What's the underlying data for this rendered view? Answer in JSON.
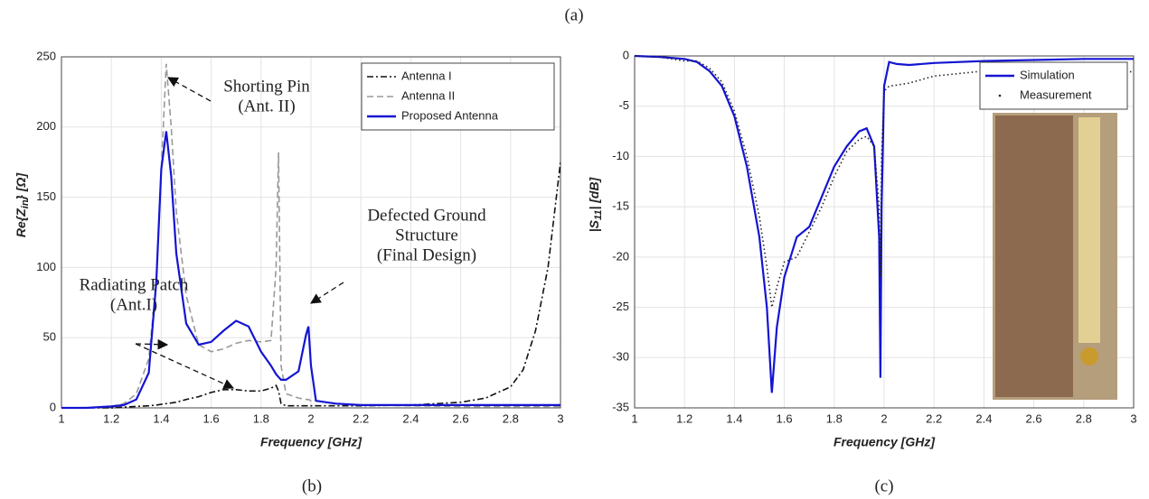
{
  "figure_label": "(a)",
  "chart_data": [
    {
      "type": "line",
      "panel_label": "(b)",
      "xlabel": "Frequency [GHz]",
      "ylabel": {
        "head": "Re{Z",
        "sub": "in",
        "tail": "} [Ω]"
      },
      "xlim": [
        1,
        3
      ],
      "xticks": [
        1,
        1.2,
        1.4,
        1.6,
        1.8,
        2,
        2.2,
        2.4,
        2.6,
        2.8,
        3
      ],
      "ylim": [
        0,
        250
      ],
      "yticks": [
        0,
        50,
        100,
        150,
        200,
        250
      ],
      "grid": true,
      "legend": "upper right",
      "x": [
        1,
        1.1,
        1.2,
        1.25,
        1.3,
        1.35,
        1.38,
        1.4,
        1.42,
        1.44,
        1.46,
        1.5,
        1.55,
        1.6,
        1.65,
        1.7,
        1.75,
        1.8,
        1.84,
        1.86,
        1.87,
        1.88,
        1.9,
        1.95,
        1.98,
        1.99,
        2,
        2.02,
        2.1,
        2.2,
        2.4,
        2.6,
        2.7,
        2.8,
        2.85,
        2.9,
        2.95,
        3
      ],
      "series": [
        {
          "name": "Antenna I",
          "color": "#111111",
          "dash": "dashdot",
          "values": [
            0,
            0,
            0,
            0.5,
            1,
            1.5,
            2,
            2.5,
            3,
            3.5,
            4,
            6,
            8,
            11,
            13,
            13,
            12,
            12,
            14,
            16,
            12,
            3,
            1.5,
            1.5,
            1.5,
            1.5,
            1.5,
            1.5,
            1.5,
            1.5,
            2,
            4,
            7,
            15,
            27,
            55,
            100,
            175
          ]
        },
        {
          "name": "Antenna II",
          "color": "#999999",
          "dash": "dashed",
          "values": [
            0,
            0,
            1,
            3,
            10,
            35,
            90,
            170,
            245,
            200,
            140,
            80,
            45,
            40,
            42,
            46,
            48,
            47,
            48,
            100,
            182,
            30,
            10,
            7,
            6,
            6,
            5,
            5,
            3,
            2,
            1.5,
            1,
            1,
            1,
            1,
            1,
            1,
            1
          ]
        },
        {
          "name": "Proposed Antenna",
          "color": "#1414d2",
          "dash": "solid",
          "values": [
            0,
            0,
            1,
            2,
            6,
            25,
            90,
            170,
            197,
            165,
            110,
            60,
            45,
            47,
            55,
            62,
            58,
            40,
            30,
            24,
            22,
            20,
            20,
            26,
            52,
            58,
            30,
            5,
            3,
            2,
            2,
            2,
            2,
            2,
            2,
            2,
            2,
            2
          ]
        }
      ],
      "annotations": [
        {
          "lines": [
            "Shorting Pin",
            "(Ant. II)"
          ]
        },
        {
          "lines": [
            "Defected Ground",
            "Structure",
            "(Final Design)"
          ]
        },
        {
          "lines": [
            "Radiating Patch",
            "(Ant.I)"
          ]
        }
      ]
    },
    {
      "type": "line",
      "panel_label": "(c)",
      "xlabel": "Frequency [GHz]",
      "ylabel": {
        "head": "|S",
        "sub": "11",
        "tail": "| [dB]"
      },
      "xlim": [
        1,
        3
      ],
      "xticks": [
        1,
        1.2,
        1.4,
        1.6,
        1.8,
        2,
        2.2,
        2.4,
        2.6,
        2.8,
        3
      ],
      "ylim": [
        -35,
        0
      ],
      "yticks": [
        -35,
        -30,
        -25,
        -20,
        -15,
        -10,
        -5,
        0
      ],
      "grid": true,
      "legend": "upper right",
      "x": [
        1,
        1.1,
        1.2,
        1.25,
        1.3,
        1.35,
        1.4,
        1.45,
        1.5,
        1.53,
        1.55,
        1.57,
        1.6,
        1.65,
        1.7,
        1.75,
        1.8,
        1.85,
        1.9,
        1.93,
        1.96,
        1.98,
        1.985,
        1.99,
        2,
        2.02,
        2.05,
        2.1,
        2.2,
        2.4,
        2.6,
        2.8,
        3
      ],
      "series": [
        {
          "name": "Simulation",
          "color": "#1414d2",
          "dash": "solid",
          "values": [
            0,
            -0.1,
            -0.3,
            -0.6,
            -1.5,
            -3,
            -6,
            -11,
            -18,
            -25,
            -33.5,
            -27,
            -22,
            -18,
            -17,
            -14,
            -11,
            -9,
            -7.5,
            -7.2,
            -9,
            -18,
            -32,
            -15,
            -3,
            -0.6,
            -0.8,
            -0.9,
            -0.7,
            -0.5,
            -0.4,
            -0.3,
            -0.3
          ]
        },
        {
          "name": "Measurement",
          "color": "#222222",
          "dash": "dotted",
          "values": [
            0,
            -0.1,
            -0.5,
            -0.5,
            -1.2,
            -2.6,
            -5.5,
            -10,
            -16,
            -21,
            -25,
            -23,
            -20.5,
            -20,
            -17.5,
            -15,
            -12,
            -9.5,
            -8.3,
            -8,
            -9,
            -15,
            -22,
            -10,
            -3.5,
            -3,
            -2.9,
            -2.7,
            -2,
            -1.5,
            -1.3,
            -1.2,
            -1.6
          ]
        }
      ]
    }
  ]
}
